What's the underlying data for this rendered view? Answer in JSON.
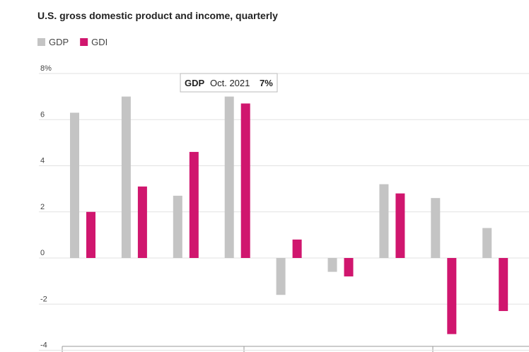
{
  "chart_data": {
    "type": "bar",
    "title": "U.S. gross domestic product and income, quarterly",
    "categories": [
      null,
      null,
      null,
      null,
      null,
      null,
      null,
      null,
      null
    ],
    "series": [
      {
        "name": "GDP",
        "color": "#c4c4c4",
        "values": [
          6.3,
          7.0,
          2.7,
          7.0,
          -1.6,
          -0.6,
          3.2,
          2.6,
          1.3
        ]
      },
      {
        "name": "GDI",
        "color": "#d0166e",
        "values": [
          2.0,
          3.1,
          4.6,
          6.7,
          0.8,
          -0.8,
          2.8,
          -3.3,
          -2.3
        ]
      }
    ],
    "ylim": [
      -4,
      8
    ],
    "yticks": [
      {
        "value": 8,
        "label": "8%"
      },
      6,
      4,
      2,
      0,
      -2,
      -4
    ],
    "grid": true,
    "annotation": {
      "series": "GDP",
      "date": "Oct. 2021",
      "label": "7%"
    }
  }
}
